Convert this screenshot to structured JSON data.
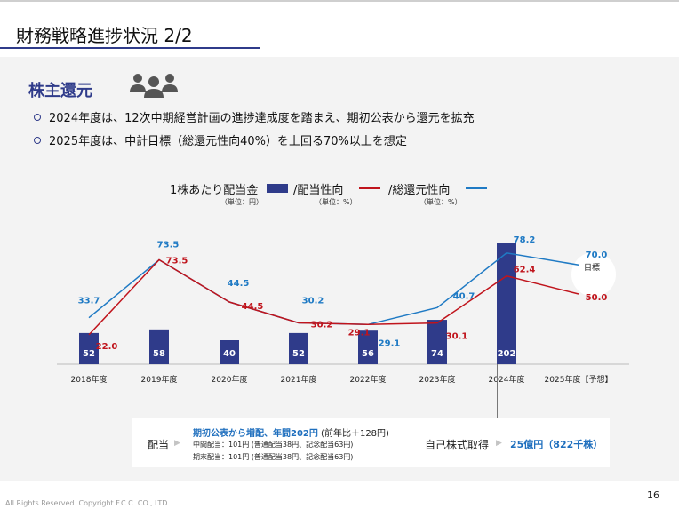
{
  "page": {
    "title": "財務戦略進捗状況 2/2",
    "section_title": "株主還元",
    "page_number": "16",
    "copyright": "All Rights Reserved. Copyright F.C.C. CO., LTD."
  },
  "bullets": [
    "2024年度は、12次中期経営計画の進捗達成度を踏まえ、期初公表から還元を拡充",
    "2025年度は、中計目標（総還元性向40%）を上回る70%以上を想定"
  ],
  "legend": {
    "dividend_label": "1株あたり配当金",
    "dividend_unit": "（単位：円）",
    "payout_label": "/配当性向",
    "payout_unit": "（単位：%）",
    "total_label": "/総還元性向",
    "total_unit": "（単位：%）"
  },
  "colors": {
    "bar": "#2f3b8a",
    "payout_line": "#c0141c",
    "total_line": "#1f7ac4",
    "accent_text": "#1f6fbe"
  },
  "chart_data": {
    "type": "bar",
    "categories": [
      "2018年度",
      "2019年度",
      "2020年度",
      "2021年度",
      "2022年度",
      "2023年度",
      "2024年度",
      "2025年度【予想】"
    ],
    "series": [
      {
        "name": "1株あたり配当金",
        "kind": "bar",
        "values": [
          52,
          58,
          40,
          52,
          56,
          74,
          202,
          null
        ]
      },
      {
        "name": "/配当性向",
        "kind": "line",
        "values": [
          22.0,
          73.5,
          44.5,
          30.2,
          29.1,
          30.1,
          62.4,
          50.0
        ]
      },
      {
        "name": "/総還元性向",
        "kind": "line",
        "values": [
          33.7,
          73.5,
          44.5,
          30.2,
          29.1,
          40.7,
          78.2,
          70.0
        ]
      }
    ],
    "target_label": "目標",
    "bar_labels": [
      "52",
      "58",
      "40",
      "52",
      "56",
      "74",
      "202",
      ""
    ],
    "payout_labels": [
      "22.0",
      "73.5",
      "44.5",
      "30.2",
      "29.1",
      "30.1",
      "62.4",
      "50.0"
    ],
    "total_labels": [
      "33.7",
      "73.5",
      "44.5",
      "30.2",
      "29.1",
      "40.7",
      "78.2",
      "70.0"
    ]
  },
  "annotation": {
    "dividend_label": "配当",
    "arrow": "▶",
    "headline": "期初公表から増配、年間202円",
    "headline_suffix": " (前年比＋128円)",
    "interim": "中間配当：101円 (普通配当38円、記念配当63円)",
    "final": "期末配当：101円 (普通配当38円、記念配当63円)",
    "buyback_label": "自己株式取得",
    "buyback_value": "25億円（822千株）"
  }
}
